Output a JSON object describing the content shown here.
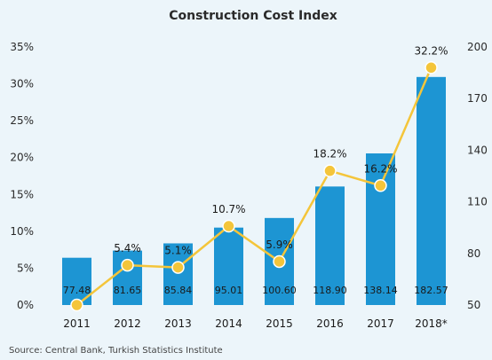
{
  "chart_data": {
    "type": "bar",
    "title": "Construction Cost Index",
    "categories": [
      "2011",
      "2012",
      "2013",
      "2014",
      "2015",
      "2016",
      "2017",
      "2018*"
    ],
    "series": [
      {
        "kind": "bar",
        "axis": "right",
        "values": [
          77.48,
          81.65,
          85.84,
          95.01,
          100.6,
          118.9,
          138.14,
          182.57
        ],
        "labels": [
          "77.48",
          "81.65",
          "85.84",
          "95.01",
          "100.60",
          "118.90",
          "138.14",
          "182.57"
        ],
        "color": "#1d95d3"
      },
      {
        "kind": "line",
        "axis": "left",
        "values": [
          0,
          5.4,
          5.1,
          10.7,
          5.9,
          18.2,
          16.2,
          32.2
        ],
        "labels": [
          "",
          "5.4%",
          "5.1%",
          "10.7%",
          "5.9%",
          "18.2%",
          "16.2%",
          "32.2%"
        ],
        "color": "#f4c53a"
      }
    ],
    "y_left": {
      "range": [
        0,
        35
      ],
      "ticks": [
        "0%",
        "5%",
        "10%",
        "15%",
        "20%",
        "25%",
        "30%",
        "35%"
      ]
    },
    "y_right": {
      "range": [
        50,
        200
      ],
      "ticks": [
        "50",
        "80",
        "110",
        "140",
        "170",
        "200"
      ]
    },
    "grid": false,
    "legend": "none"
  },
  "source": "Source: Central Bank, Turkish Statistics Institute"
}
